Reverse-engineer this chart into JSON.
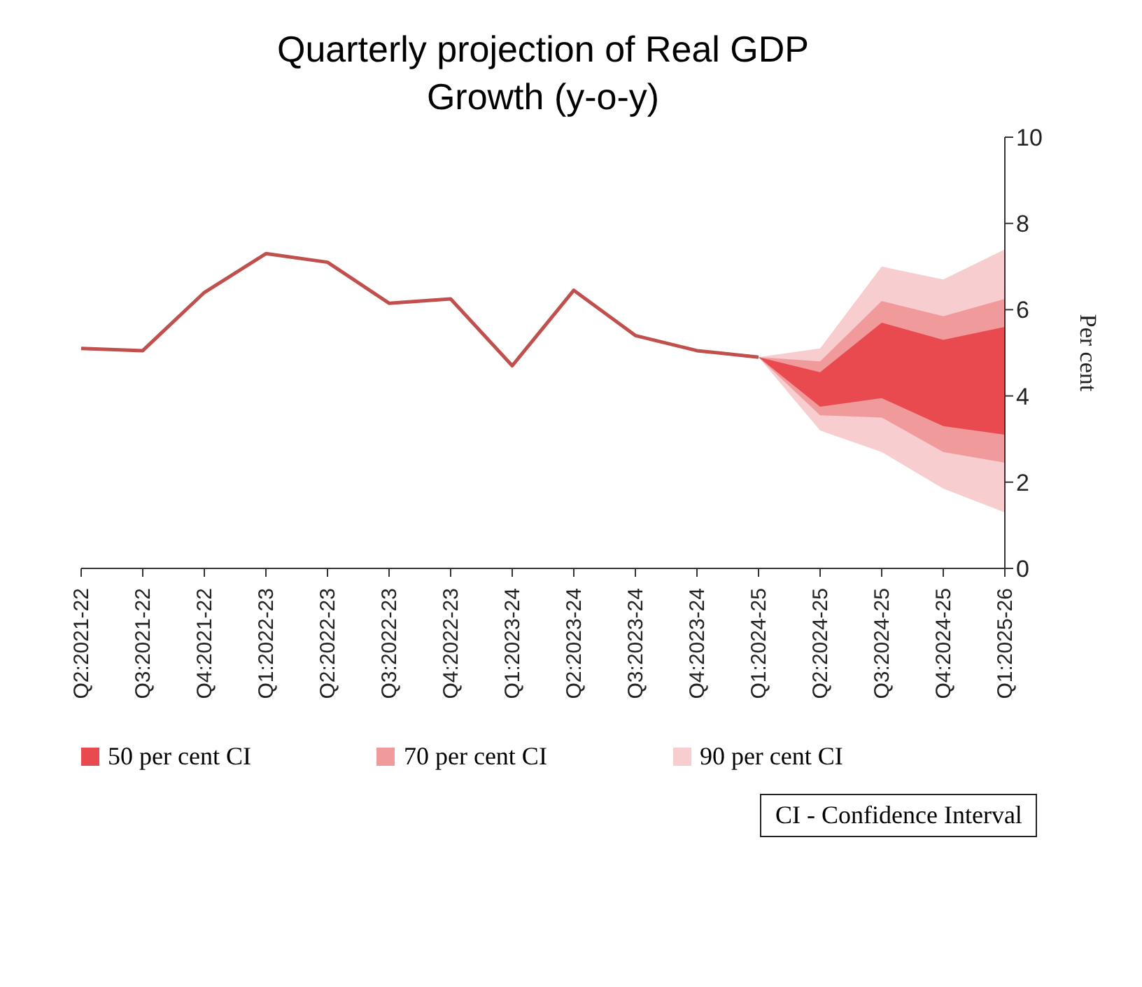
{
  "chart_data": {
    "type": "line",
    "title": "Quarterly projection of Real GDP Growth (y-o-y)",
    "ylabel": "Per cent",
    "categories": [
      "Q2:2021-22",
      "Q3:2021-22",
      "Q4:2021-22",
      "Q1:2022-23",
      "Q2:2022-23",
      "Q3:2022-23",
      "Q4:2022-23",
      "Q1:2023-24",
      "Q2:2023-24",
      "Q3:2023-24",
      "Q4:2023-24",
      "Q1:2024-25",
      "Q2:2024-25",
      "Q3:2024-25",
      "Q4:2024-25",
      "Q1:2025-26"
    ],
    "series": [
      {
        "type": "area",
        "name": "90 per cent CI",
        "color": "#f7cdd0",
        "values": [
          null,
          null,
          null,
          null,
          null,
          null,
          null,
          null,
          null,
          null,
          null,
          null,
          null,
          null,
          null,
          null
        ],
        "lower": [
          null,
          null,
          null,
          null,
          null,
          null,
          null,
          null,
          null,
          null,
          null,
          4.9,
          3.2,
          2.7,
          1.85,
          1.3
        ],
        "upper": [
          null,
          null,
          null,
          null,
          null,
          null,
          null,
          null,
          null,
          null,
          null,
          4.9,
          5.1,
          7.0,
          6.7,
          7.4
        ]
      },
      {
        "type": "area",
        "name": "70 per cent CI",
        "color": "#f09a9c",
        "values": [
          null,
          null,
          null,
          null,
          null,
          null,
          null,
          null,
          null,
          null,
          null,
          null,
          null,
          null,
          null,
          null
        ],
        "lower": [
          null,
          null,
          null,
          null,
          null,
          null,
          null,
          null,
          null,
          null,
          null,
          4.9,
          3.55,
          3.5,
          2.7,
          2.45
        ],
        "upper": [
          null,
          null,
          null,
          null,
          null,
          null,
          null,
          null,
          null,
          null,
          null,
          4.9,
          4.8,
          6.2,
          5.85,
          6.25
        ]
      },
      {
        "type": "area",
        "name": "50 per cent CI",
        "color": "#e84a4f",
        "values": [
          null,
          null,
          null,
          null,
          null,
          null,
          null,
          null,
          null,
          null,
          null,
          null,
          null,
          null,
          null,
          null
        ],
        "lower": [
          null,
          null,
          null,
          null,
          null,
          null,
          null,
          null,
          null,
          null,
          null,
          4.9,
          3.75,
          3.95,
          3.3,
          3.1
        ],
        "upper": [
          null,
          null,
          null,
          null,
          null,
          null,
          null,
          null,
          null,
          null,
          null,
          4.9,
          4.55,
          5.7,
          5.3,
          5.6
        ]
      },
      {
        "color": "#c0504d",
        "values": [
          5.1,
          5.05,
          6.4,
          7.3,
          7.1,
          6.15,
          6.25,
          4.7,
          6.45,
          5.4,
          5.05,
          4.9,
          null,
          null,
          null,
          null
        ]
      }
    ],
    "ylim": [
      0,
      10
    ],
    "yticks": [
      0,
      2,
      4,
      6,
      8,
      10
    ],
    "grid": false,
    "legend": "bottom",
    "marker": "none",
    "line_style": "solid",
    "annotations": [
      "CI - Confidence Interval"
    ]
  }
}
